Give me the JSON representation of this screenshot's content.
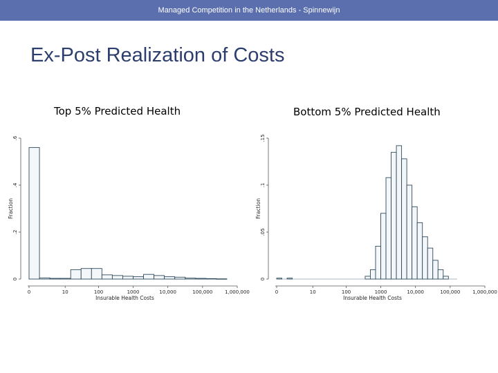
{
  "header": {
    "text": "Managed Competition in the Netherlands - Spinnewijn"
  },
  "slide": {
    "title": "Ex-Post Realization of Costs"
  },
  "chart_data": [
    {
      "type": "bar",
      "title": "Top 5% Predicted Health",
      "xlabel": "Insurable Health Costs",
      "ylabel": "Fraction",
      "xscale": "log(1+x)",
      "xlim": [
        0,
        1000000
      ],
      "ylim": [
        0,
        0.6
      ],
      "yticks": [
        0,
        0.2,
        0.4,
        0.6
      ],
      "ytick_labels": [
        "0",
        ".2",
        ".4",
        ".6"
      ],
      "xticks": [
        0,
        10,
        100,
        1000,
        10000,
        100000,
        1000000
      ],
      "xtick_labels": [
        "0",
        "10",
        "100",
        "1000",
        "10,000",
        "100,000",
        "1,000,000"
      ],
      "bin_width_log10": 0.3,
      "bins": [
        {
          "start": 0,
          "value": 0.56
        },
        {
          "start": 0.3,
          "value": 0.005
        },
        {
          "start": 0.6,
          "value": 0.003
        },
        {
          "start": 0.9,
          "value": 0.003
        },
        {
          "start": 1.2,
          "value": 0.04
        },
        {
          "start": 1.5,
          "value": 0.045
        },
        {
          "start": 1.8,
          "value": 0.045
        },
        {
          "start": 2.1,
          "value": 0.018
        },
        {
          "start": 2.4,
          "value": 0.015
        },
        {
          "start": 2.7,
          "value": 0.012
        },
        {
          "start": 3.0,
          "value": 0.01
        },
        {
          "start": 3.3,
          "value": 0.02
        },
        {
          "start": 3.6,
          "value": 0.015
        },
        {
          "start": 3.9,
          "value": 0.01
        },
        {
          "start": 4.2,
          "value": 0.008
        },
        {
          "start": 4.5,
          "value": 0.004
        },
        {
          "start": 4.8,
          "value": 0.003
        },
        {
          "start": 5.1,
          "value": 0.002
        },
        {
          "start": 5.4,
          "value": 0.001
        }
      ]
    },
    {
      "type": "bar",
      "title": "Bottom 5% Predicted Health",
      "xlabel": "Insurable Health Costs",
      "ylabel": "Fraction",
      "xscale": "log(1+x)",
      "xlim": [
        0,
        1000000
      ],
      "ylim": [
        0,
        0.15
      ],
      "yticks": [
        0,
        0.05,
        0.1,
        0.15
      ],
      "ytick_labels": [
        "0",
        ".05",
        ".1",
        ".15"
      ],
      "xticks": [
        0,
        10,
        100,
        1000,
        10000,
        100000,
        1000000
      ],
      "xtick_labels": [
        "0",
        "10",
        "100",
        "1000",
        "10,000",
        "100,000",
        "1,000,000"
      ],
      "bin_width_log10": 0.15,
      "bins": [
        {
          "start": 0,
          "value": 0.001
        },
        {
          "start": 0.3,
          "value": 0.001
        },
        {
          "start": 2.55,
          "value": 0.003
        },
        {
          "start": 2.7,
          "value": 0.01
        },
        {
          "start": 2.85,
          "value": 0.035
        },
        {
          "start": 3.0,
          "value": 0.07
        },
        {
          "start": 3.15,
          "value": 0.108
        },
        {
          "start": 3.3,
          "value": 0.135
        },
        {
          "start": 3.45,
          "value": 0.142
        },
        {
          "start": 3.6,
          "value": 0.128
        },
        {
          "start": 3.75,
          "value": 0.1
        },
        {
          "start": 3.9,
          "value": 0.077
        },
        {
          "start": 4.05,
          "value": 0.06
        },
        {
          "start": 4.2,
          "value": 0.045
        },
        {
          "start": 4.35,
          "value": 0.033
        },
        {
          "start": 4.5,
          "value": 0.02
        },
        {
          "start": 4.65,
          "value": 0.01
        },
        {
          "start": 4.8,
          "value": 0.003
        }
      ]
    }
  ]
}
